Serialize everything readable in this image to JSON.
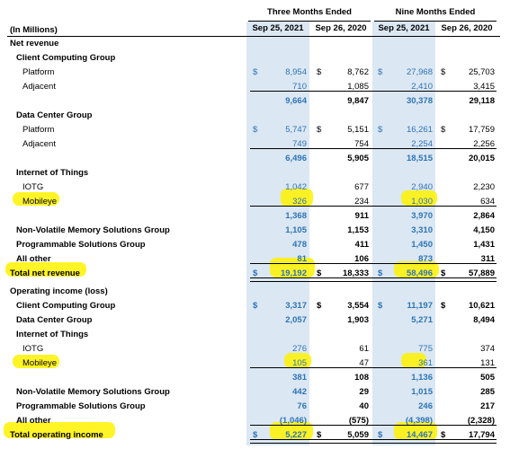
{
  "header": {
    "group1": "Three Months Ended",
    "group2": "Nine Months Ended",
    "unit": "(In Millions)",
    "cols": [
      "Sep 25, 2021",
      "Sep 26, 2020",
      "Sep 25, 2021",
      "Sep 26, 2020"
    ]
  },
  "colors": {
    "current_period": "#2e74b5",
    "shading": "#dbe7f3",
    "highlight": "#fff200"
  },
  "rows": [
    {
      "label": "Net revenue",
      "bold": true,
      "indent": 0,
      "v": [
        "",
        "",
        "",
        ""
      ]
    },
    {
      "label": "Client Computing Group",
      "bold": true,
      "indent": 1,
      "v": [
        "",
        "",
        "",
        ""
      ]
    },
    {
      "label": "Platform",
      "bold": false,
      "indent": 2,
      "dollar": true,
      "v": [
        "8,954",
        "8,762",
        "27,968",
        "25,703"
      ]
    },
    {
      "label": "Adjacent",
      "bold": false,
      "indent": 2,
      "v": [
        "710",
        "1,085",
        "2,410",
        "3,415"
      ]
    },
    {
      "label": "",
      "bold": true,
      "indent": 0,
      "v": [
        "9,664",
        "9,847",
        "30,378",
        "29,118"
      ]
    },
    {
      "label": "Data Center Group",
      "bold": true,
      "indent": 1,
      "v": [
        "",
        "",
        "",
        ""
      ]
    },
    {
      "label": "Platform",
      "bold": false,
      "indent": 2,
      "dollar": true,
      "v": [
        "5,747",
        "5,151",
        "16,261",
        "17,759"
      ]
    },
    {
      "label": "Adjacent",
      "bold": false,
      "indent": 2,
      "v": [
        "749",
        "754",
        "2,254",
        "2,256"
      ]
    },
    {
      "label": "",
      "bold": true,
      "indent": 0,
      "v": [
        "6,496",
        "5,905",
        "18,515",
        "20,015"
      ]
    },
    {
      "label": "Internet of Things",
      "bold": true,
      "indent": 1,
      "v": [
        "",
        "",
        "",
        ""
      ]
    },
    {
      "label": "IOTG",
      "bold": false,
      "indent": 2,
      "v": [
        "1,042",
        "677",
        "2,940",
        "2,230"
      ]
    },
    {
      "label": "Mobileye",
      "bold": false,
      "indent": 2,
      "v": [
        "326",
        "234",
        "1,030",
        "634"
      ]
    },
    {
      "label": "",
      "bold": true,
      "indent": 0,
      "v": [
        "1,368",
        "911",
        "3,970",
        "2,864"
      ]
    },
    {
      "label": "Non-Volatile Memory Solutions Group",
      "bold": true,
      "indent": 1,
      "v": [
        "1,105",
        "1,153",
        "3,310",
        "4,150"
      ]
    },
    {
      "label": "Programmable Solutions Group",
      "bold": true,
      "indent": 1,
      "v": [
        "478",
        "411",
        "1,450",
        "1,431"
      ]
    },
    {
      "label": "All other",
      "bold": true,
      "indent": 1,
      "v": [
        "81",
        "106",
        "873",
        "311"
      ]
    },
    {
      "label": "Total net revenue",
      "bold": true,
      "indent": 0,
      "dollar": true,
      "v": [
        "19,192",
        "18,333",
        "58,496",
        "57,889"
      ]
    },
    {
      "label": "Operating income (loss)",
      "bold": true,
      "indent": 0,
      "v": [
        "",
        "",
        "",
        ""
      ]
    },
    {
      "label": "Client Computing Group",
      "bold": true,
      "indent": 1,
      "dollar": true,
      "v": [
        "3,317",
        "3,554",
        "11,197",
        "10,621"
      ]
    },
    {
      "label": "Data Center Group",
      "bold": true,
      "indent": 1,
      "v": [
        "2,057",
        "1,903",
        "5,271",
        "8,494"
      ]
    },
    {
      "label": "Internet of Things",
      "bold": true,
      "indent": 1,
      "v": [
        "",
        "",
        "",
        ""
      ]
    },
    {
      "label": "IOTG",
      "bold": false,
      "indent": 2,
      "v": [
        "276",
        "61",
        "775",
        "374"
      ]
    },
    {
      "label": "Mobileye",
      "bold": false,
      "indent": 2,
      "v": [
        "105",
        "47",
        "361",
        "131"
      ]
    },
    {
      "label": "",
      "bold": true,
      "indent": 0,
      "v": [
        "381",
        "108",
        "1,136",
        "505"
      ]
    },
    {
      "label": "Non-Volatile Memory Solutions Group",
      "bold": true,
      "indent": 1,
      "v": [
        "442",
        "29",
        "1,015",
        "285"
      ]
    },
    {
      "label": "Programmable Solutions Group",
      "bold": true,
      "indent": 1,
      "v": [
        "76",
        "40",
        "246",
        "217"
      ]
    },
    {
      "label": "All other",
      "bold": true,
      "indent": 1,
      "v": [
        "(1,046)",
        "(575)",
        "(4,398)",
        "(2,328)"
      ]
    },
    {
      "label": "Total operating income",
      "bold": true,
      "indent": 0,
      "dollar": true,
      "v": [
        "5,227",
        "5,059",
        "14,467",
        "17,794"
      ]
    }
  ],
  "dollar_sign": "$"
}
